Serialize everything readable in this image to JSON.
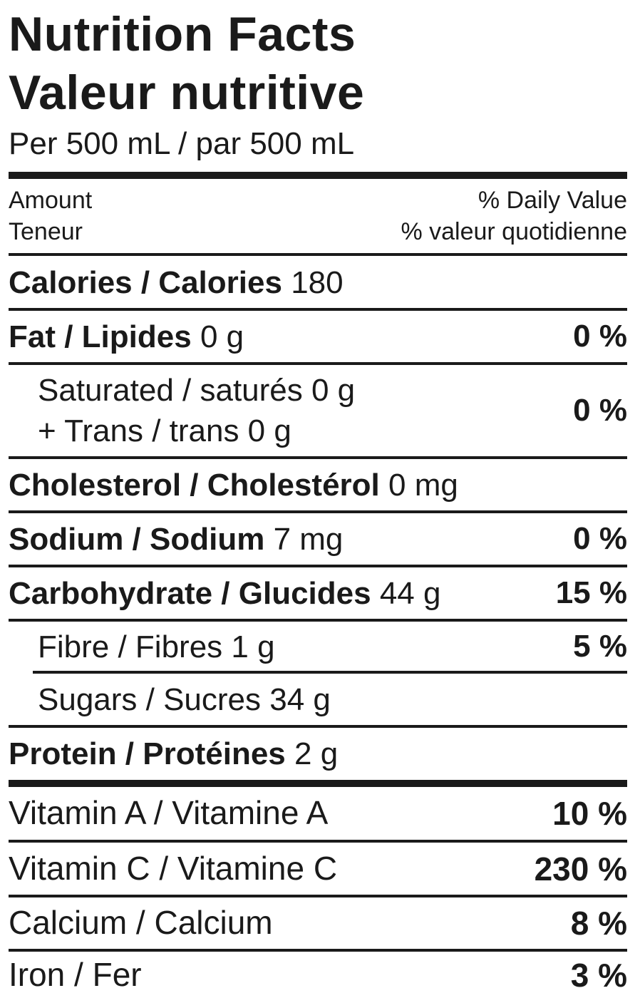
{
  "title_en": "Nutrition Facts",
  "title_fr": "Valeur nutritive",
  "serving": "Per 500 mL / par 500 mL",
  "header": {
    "amount_en": "Amount",
    "amount_fr": "Teneur",
    "dv_en": "% Daily Value",
    "dv_fr": "% valeur quotidienne"
  },
  "calories": {
    "label": "Calories / Calories",
    "amount": "180"
  },
  "fat": {
    "label": "Fat / Lipides",
    "amount": "0 g",
    "dv": "0 %"
  },
  "saturated": {
    "line1": "Saturated / saturés 0 g",
    "line2": "+ Trans / trans 0 g",
    "dv": "0 %"
  },
  "cholesterol": {
    "label": "Cholesterol / Cholestérol",
    "amount": "0 mg"
  },
  "sodium": {
    "label": "Sodium / Sodium",
    "amount": "7 mg",
    "dv": "0 %"
  },
  "carbohydrate": {
    "label": "Carbohydrate / Glucides",
    "amount": "44 g",
    "dv": "15 %"
  },
  "fibre": {
    "label": "Fibre / Fibres 1 g",
    "dv": "5 %"
  },
  "sugars": {
    "label": "Sugars / Sucres 34 g"
  },
  "protein": {
    "label": "Protein / Protéines",
    "amount": "2 g"
  },
  "vitamins": [
    {
      "label": "Vitamin A / Vitamine A",
      "dv": "10 %"
    },
    {
      "label": "Vitamin C / Vitamine C",
      "dv": "230 %"
    },
    {
      "label": "Calcium / Calcium",
      "dv": "8 %"
    },
    {
      "label": "Iron / Fer",
      "dv": "3 %"
    }
  ]
}
